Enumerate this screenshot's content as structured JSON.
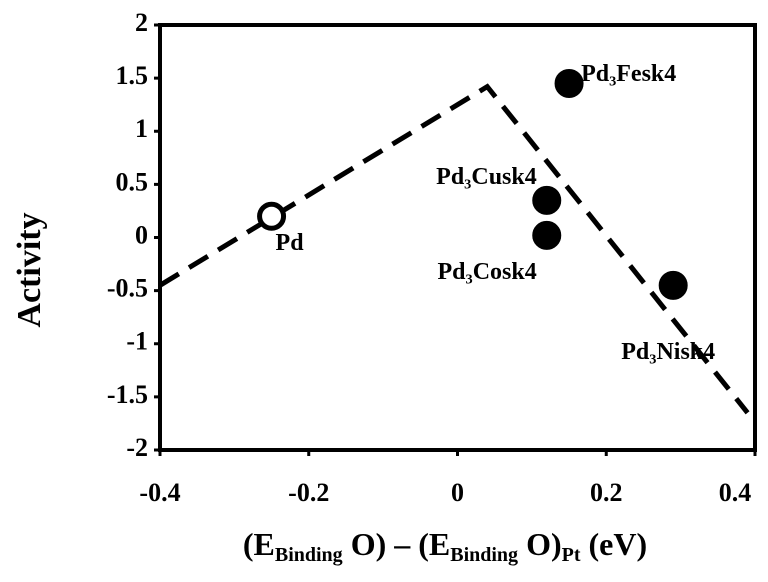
{
  "chart_data": {
    "type": "scatter",
    "x_label": [
      "(E",
      "Binding",
      " O) – (E",
      "Binding",
      " O)",
      "Pt",
      " (eV)"
    ],
    "y_label": "Activity",
    "x": [
      -0.25,
      0.15,
      0.12,
      0.12,
      0.29
    ],
    "values": [
      0.2,
      1.45,
      0.35,
      0.02,
      -0.45
    ],
    "labels": [
      "Pd",
      "Pd₃Fesk4",
      "Pd₃Cusk4",
      "Pd₃Cosk4",
      "Pd₃Nisk4"
    ],
    "marker_fill": [
      "#ffffff",
      "#000000",
      "#000000",
      "#000000",
      "#000000"
    ],
    "color": "#000000",
    "trend": {
      "x": [
        -0.4,
        0.04,
        0.39
      ],
      "values": [
        -0.45,
        1.42,
        -1.65
      ]
    },
    "xlim": [
      -0.4,
      0.4
    ],
    "xticks": [
      -0.4,
      -0.2,
      0,
      0.2,
      0.4
    ],
    "ylim": [
      -2,
      2
    ],
    "yticks": [
      -2,
      -1.5,
      -1,
      -0.5,
      0,
      0.5,
      1,
      1.5,
      2
    ]
  }
}
